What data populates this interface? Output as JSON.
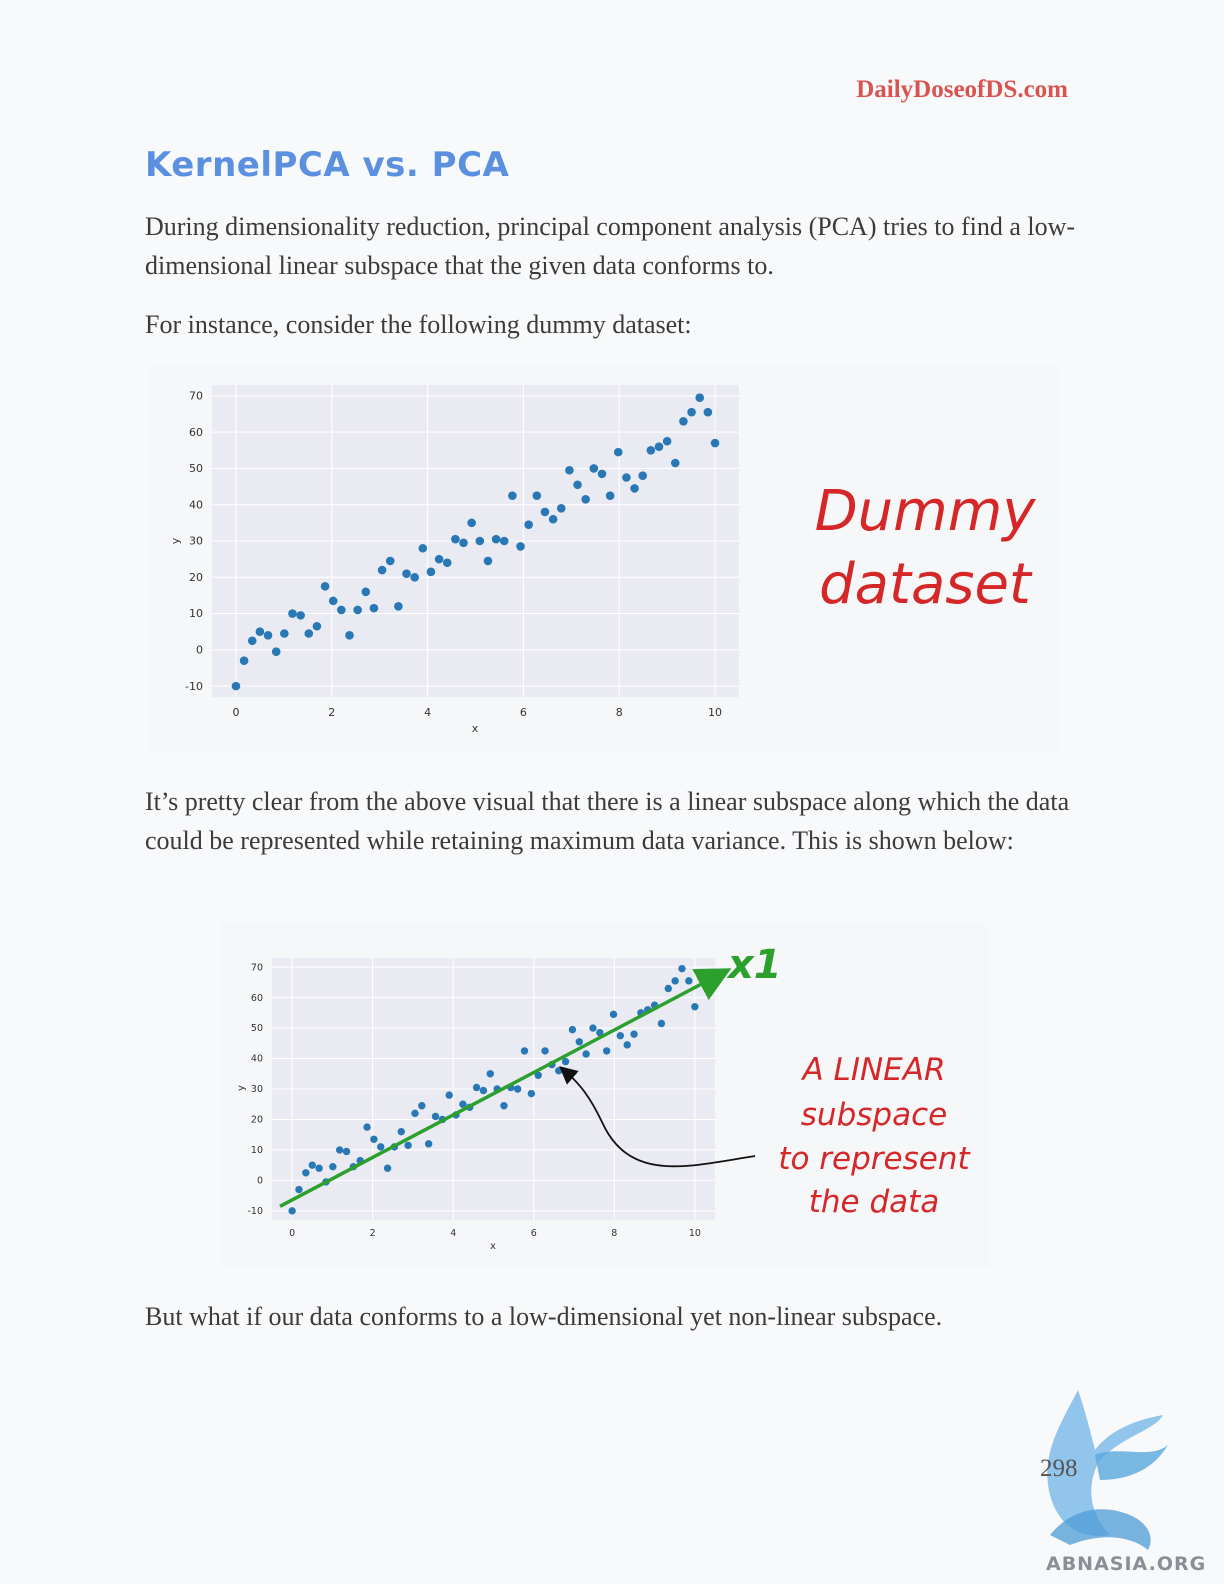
{
  "header": {
    "site": "DailyDoseofDS.com"
  },
  "section_title": "KernelPCA vs. PCA",
  "paragraphs": {
    "p1": "During dimensionality reduction, principal component analysis (PCA) tries to find a low-dimensional linear subspace that the given data conforms to.",
    "p2": "For instance, consider the following dummy dataset:",
    "p3": "It’s pretty clear from the above visual that there is a linear subspace along which the data could be represented while retaining maximum data variance. This is shown below:",
    "p4": "But what if our data conforms to a low-dimensional yet non-linear subspace."
  },
  "figure1": {
    "annotation_line1": "Dummy",
    "annotation_line2": "dataset"
  },
  "figure2": {
    "arrow_label": "x1",
    "annotation_lines": [
      "A LINEAR",
      "subspace",
      "to represent",
      "the data"
    ]
  },
  "footer": {
    "page_number": "298",
    "watermark": "ABNASIA.ORG"
  },
  "colors": {
    "site": "#d9534f",
    "title": "#5b8fe0",
    "points": "#2878b5",
    "line": "#2ca02c",
    "annotation": "#d62728"
  },
  "chart_data": [
    {
      "type": "scatter",
      "title": "",
      "xlabel": "x",
      "ylabel": "y",
      "xlim": [
        -0.5,
        10.5
      ],
      "ylim": [
        -13,
        73
      ],
      "xticks": [
        0,
        2,
        4,
        6,
        8,
        10
      ],
      "yticks": [
        -10,
        0,
        10,
        20,
        30,
        40,
        50,
        60,
        70
      ],
      "grid": true,
      "x": [
        0,
        0.17,
        0.34,
        0.5,
        0.67,
        0.84,
        1.01,
        1.18,
        1.35,
        1.52,
        1.69,
        1.86,
        2.03,
        2.2,
        2.37,
        2.54,
        2.71,
        2.88,
        3.05,
        3.22,
        3.39,
        3.56,
        3.73,
        3.9,
        4.07,
        4.24,
        4.41,
        4.58,
        4.75,
        4.92,
        5.09,
        5.26,
        5.43,
        5.6,
        5.77,
        5.94,
        6.11,
        6.28,
        6.45,
        6.62,
        6.79,
        6.96,
        7.13,
        7.3,
        7.47,
        7.64,
        7.81,
        7.98,
        8.15,
        8.32,
        8.49,
        8.66,
        8.83,
        9.0,
        9.17,
        9.34,
        9.51,
        9.68,
        9.85,
        10.0
      ],
      "y": [
        -10,
        -3,
        2.5,
        5,
        4,
        -0.5,
        4.5,
        10,
        9.5,
        4.5,
        6.5,
        17.5,
        13.5,
        11,
        4,
        11,
        16,
        11.5,
        22,
        24.5,
        12,
        21,
        20,
        28,
        21.5,
        25,
        24,
        30.5,
        29.5,
        35,
        30,
        24.5,
        30.5,
        30,
        42.5,
        28.5,
        34.5,
        42.5,
        38,
        36,
        39,
        49.5,
        45.5,
        41.5,
        50,
        48.5,
        42.5,
        54.5,
        47.5,
        44.5,
        48,
        55,
        56,
        57.5,
        51.5,
        63,
        65.5,
        69.5,
        65.5,
        57
      ]
    },
    {
      "type": "scatter",
      "title": "",
      "xlabel": "x",
      "ylabel": "y",
      "xlim": [
        -0.5,
        10.5
      ],
      "ylim": [
        -13,
        73
      ],
      "xticks": [
        0,
        2,
        4,
        6,
        8,
        10
      ],
      "yticks": [
        -10,
        0,
        10,
        20,
        30,
        40,
        50,
        60,
        70
      ],
      "grid": true,
      "fit_line": {
        "x": [
          -0.3,
          10.6
        ],
        "y": [
          -8.5,
          67.5
        ]
      },
      "x": [
        0,
        0.17,
        0.34,
        0.5,
        0.67,
        0.84,
        1.01,
        1.18,
        1.35,
        1.52,
        1.69,
        1.86,
        2.03,
        2.2,
        2.37,
        2.54,
        2.71,
        2.88,
        3.05,
        3.22,
        3.39,
        3.56,
        3.73,
        3.9,
        4.07,
        4.24,
        4.41,
        4.58,
        4.75,
        4.92,
        5.09,
        5.26,
        5.43,
        5.6,
        5.77,
        5.94,
        6.11,
        6.28,
        6.45,
        6.62,
        6.79,
        6.96,
        7.13,
        7.3,
        7.47,
        7.64,
        7.81,
        7.98,
        8.15,
        8.32,
        8.49,
        8.66,
        8.83,
        9.0,
        9.17,
        9.34,
        9.51,
        9.68,
        9.85,
        10.0
      ],
      "y": [
        -10,
        -3,
        2.5,
        5,
        4,
        -0.5,
        4.5,
        10,
        9.5,
        4.5,
        6.5,
        17.5,
        13.5,
        11,
        4,
        11,
        16,
        11.5,
        22,
        24.5,
        12,
        21,
        20,
        28,
        21.5,
        25,
        24,
        30.5,
        29.5,
        35,
        30,
        24.5,
        30.5,
        30,
        42.5,
        28.5,
        34.5,
        42.5,
        38,
        36,
        39,
        49.5,
        45.5,
        41.5,
        50,
        48.5,
        42.5,
        54.5,
        47.5,
        44.5,
        48,
        55,
        56,
        57.5,
        51.5,
        63,
        65.5,
        69.5,
        65.5,
        57
      ]
    }
  ]
}
